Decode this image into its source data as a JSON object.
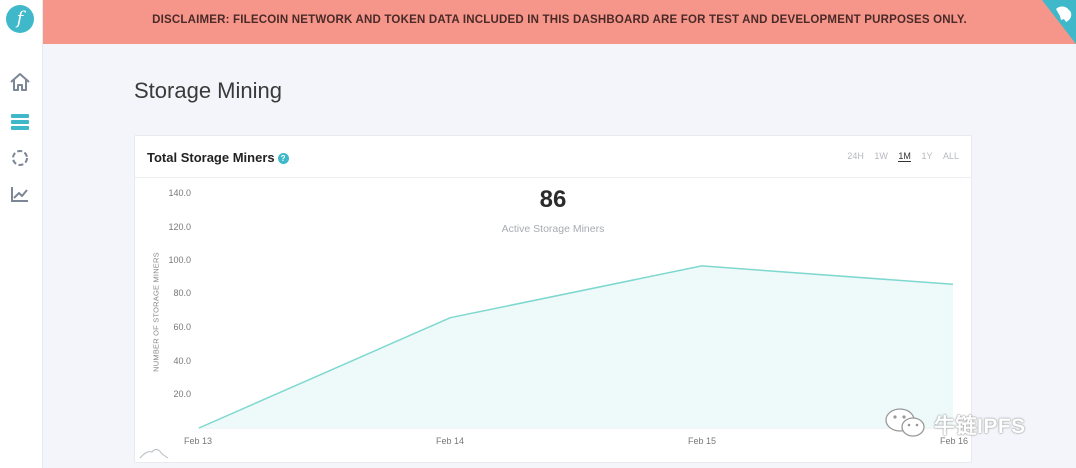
{
  "banner": {
    "text": "DISCLAIMER: FILECOIN NETWORK AND TOKEN DATA INCLUDED IN THIS DASHBOARD ARE FOR TEST AND DEVELOPMENT PURPOSES ONLY."
  },
  "logo": {
    "glyph": "f",
    "color": "#3fb8c9"
  },
  "sidebar": {
    "items": [
      {
        "icon": "home-icon"
      },
      {
        "icon": "storage-server-icon",
        "active": true
      },
      {
        "icon": "network-circle-icon"
      },
      {
        "icon": "trend-chart-icon"
      }
    ]
  },
  "page": {
    "title": "Storage Mining"
  },
  "card": {
    "title": "Total Storage Miners",
    "help_glyph": "?",
    "ranges": [
      "24H",
      "1W",
      "1M",
      "1Y",
      "ALL"
    ],
    "active_range": "1M",
    "highlight_value": "86",
    "highlight_label": "Active Storage Miners"
  },
  "chart_data": {
    "type": "area",
    "title": "",
    "xlabel": "",
    "ylabel": "NUMBER OF STORAGE MINERS",
    "categories": [
      "Feb 13",
      "Feb 14",
      "Feb 15",
      "Feb 16"
    ],
    "x": [
      "Feb 13",
      "Feb 14",
      "Feb 15",
      "Feb 16"
    ],
    "values": [
      0,
      66,
      97,
      86
    ],
    "ylim": [
      0,
      140
    ],
    "yticks": [
      "20.0",
      "40.0",
      "60.0",
      "80.0",
      "100.0",
      "120.0",
      "140.0"
    ],
    "line_color": "#7ed8cf",
    "fill_color": "#eef9f9",
    "grid": false
  },
  "watermark": {
    "text": "牛链IPFS"
  },
  "colors": {
    "accent": "#3fb8c9",
    "banner": "#f6968a"
  }
}
